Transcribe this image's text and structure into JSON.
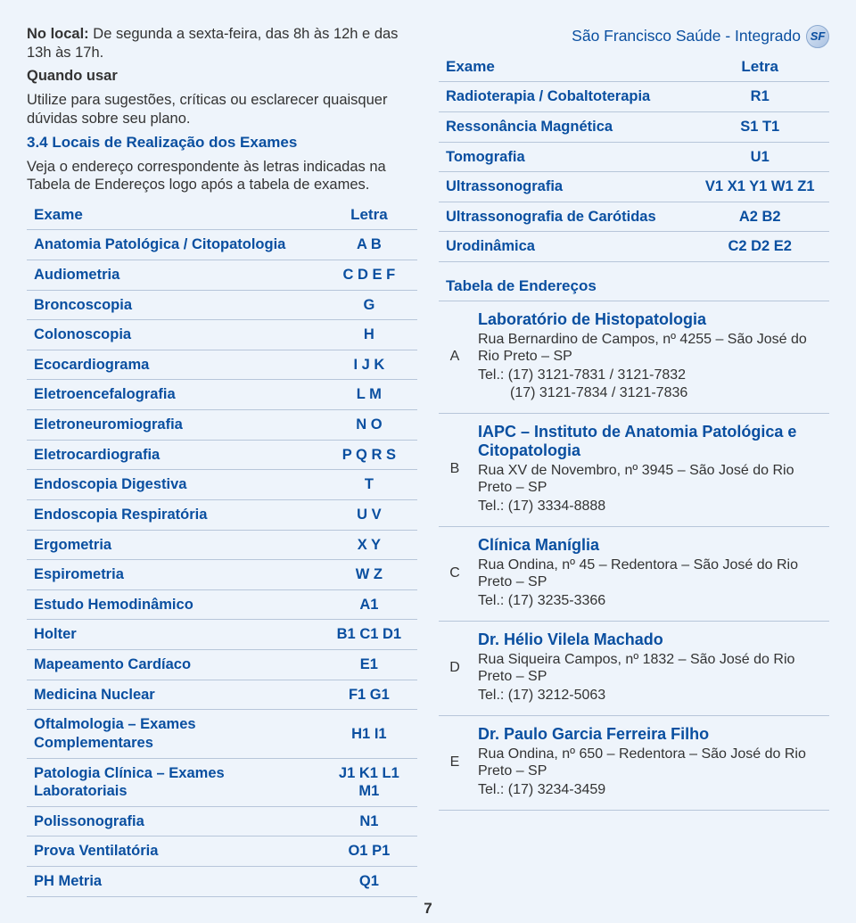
{
  "header_right": "São Francisco Saúde - Integrado",
  "logo_text": "SF",
  "intro": {
    "line1": "No local: De segunda a sexta-feira, das 8h às 12h e das 13h às 17h.",
    "quando_title": "Quando usar",
    "quando_text": "Utilize para sugestões, críticas ou esclarecer quaisquer dúvidas sobre seu plano.",
    "sec34_title": "3.4 Locais de Realização dos Exames",
    "sec34_text": "Veja o endereço correspondente às letras indicadas na Tabela de Endereços logo após a tabela de exames."
  },
  "exam_table": {
    "col_exam": "Exame",
    "col_letra": "Letra",
    "rows_left": [
      {
        "exam": "Anatomia Patológica / Citopatologia",
        "letra": "A B"
      },
      {
        "exam": "Audiometria",
        "letra": "C D E F"
      },
      {
        "exam": "Broncoscopia",
        "letra": "G"
      },
      {
        "exam": "Colonoscopia",
        "letra": "H"
      },
      {
        "exam": "Ecocardiograma",
        "letra": "I J K"
      },
      {
        "exam": "Eletroencefalografia",
        "letra": "L M"
      },
      {
        "exam": "Eletroneuromiografia",
        "letra": "N O"
      },
      {
        "exam": "Eletrocardiografia",
        "letra": "P Q R S"
      },
      {
        "exam": "Endoscopia Digestiva",
        "letra": "T"
      },
      {
        "exam": "Endoscopia Respiratória",
        "letra": "U V"
      },
      {
        "exam": "Ergometria",
        "letra": "X Y"
      },
      {
        "exam": "Espirometria",
        "letra": "W Z"
      },
      {
        "exam": "Estudo Hemodinâmico",
        "letra": "A1"
      },
      {
        "exam": "Holter",
        "letra": "B1 C1 D1"
      },
      {
        "exam": "Mapeamento Cardíaco",
        "letra": "E1"
      },
      {
        "exam": "Medicina Nuclear",
        "letra": "F1 G1"
      },
      {
        "exam": "Oftalmologia – Exames Complementares",
        "letra": "H1 I1"
      },
      {
        "exam": "Patologia Clínica – Exames Laboratoriais",
        "letra": "J1 K1 L1 M1"
      },
      {
        "exam": "Polissonografia",
        "letra": "N1"
      },
      {
        "exam": "Prova Ventilatória",
        "letra": "O1 P1"
      },
      {
        "exam": "PH Metria",
        "letra": "Q1"
      }
    ],
    "rows_right": [
      {
        "exam": "Radioterapia / Cobaltoterapia",
        "letra": "R1"
      },
      {
        "exam": "Ressonância Magnética",
        "letra": "S1 T1"
      },
      {
        "exam": "Tomografia",
        "letra": "U1"
      },
      {
        "exam": "Ultrassonografia",
        "letra": "V1 X1 Y1 W1 Z1"
      },
      {
        "exam": "Ultrassonografia de Carótidas",
        "letra": "A2 B2"
      },
      {
        "exam": "Urodinâmica",
        "letra": "C2 D2 E2"
      }
    ]
  },
  "addr_title": "Tabela de Endereços",
  "addresses": [
    {
      "letter": "A",
      "name": "Laboratório de Histopatologia",
      "addr": "Rua Bernardino de Campos, nº 4255 – São José do Rio Preto – SP",
      "tel": "Tel.: (17) 3121-7831 / 3121-7832",
      "tel2": "(17) 3121-7834 / 3121-7836"
    },
    {
      "letter": "B",
      "name": "IAPC – Instituto de Anatomia Patológica e Citopatologia",
      "addr": "Rua XV de Novembro, nº 3945 – São José do Rio Preto – SP",
      "tel": "Tel.: (17) 3334-8888"
    },
    {
      "letter": "C",
      "name": "Clínica Maníglia",
      "addr": "Rua Ondina, nº 45 – Redentora – São José do Rio Preto – SP",
      "tel": "Tel.: (17) 3235-3366"
    },
    {
      "letter": "D",
      "name": "Dr. Hélio Vilela Machado",
      "addr": "Rua Siqueira Campos, nº 1832 – São José do Rio Preto – SP",
      "tel": "Tel.: (17) 3212-5063"
    },
    {
      "letter": "E",
      "name": "Dr. Paulo Garcia Ferreira Filho",
      "addr": "Rua Ondina, nº 650 – Redentora – São José do Rio Preto – SP",
      "tel": "Tel.: (17) 3234-3459"
    }
  ],
  "page_number": "7",
  "colors": {
    "bg": "#eef4fb",
    "primary": "#0a4fa0",
    "border": "#b7c6da",
    "text": "#333"
  }
}
